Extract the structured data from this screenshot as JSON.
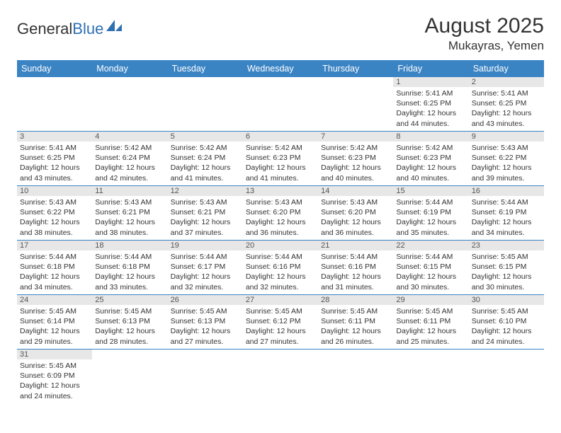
{
  "logo": {
    "part1": "General",
    "part2": "Blue"
  },
  "title": "August 2025",
  "location": "Mukayras, Yemen",
  "colors": {
    "header_bg": "#3b84c4",
    "header_text": "#ffffff",
    "daynum_bg": "#e7e7e7",
    "cell_border": "#3b84c4",
    "text": "#333333",
    "logo_blue": "#2f6fb3"
  },
  "weekdays": [
    "Sunday",
    "Monday",
    "Tuesday",
    "Wednesday",
    "Thursday",
    "Friday",
    "Saturday"
  ],
  "weeks": [
    [
      null,
      null,
      null,
      null,
      null,
      {
        "n": "1",
        "sr": "Sunrise: 5:41 AM",
        "ss": "Sunset: 6:25 PM",
        "dl1": "Daylight: 12 hours",
        "dl2": "and 44 minutes."
      },
      {
        "n": "2",
        "sr": "Sunrise: 5:41 AM",
        "ss": "Sunset: 6:25 PM",
        "dl1": "Daylight: 12 hours",
        "dl2": "and 43 minutes."
      }
    ],
    [
      {
        "n": "3",
        "sr": "Sunrise: 5:41 AM",
        "ss": "Sunset: 6:25 PM",
        "dl1": "Daylight: 12 hours",
        "dl2": "and 43 minutes."
      },
      {
        "n": "4",
        "sr": "Sunrise: 5:42 AM",
        "ss": "Sunset: 6:24 PM",
        "dl1": "Daylight: 12 hours",
        "dl2": "and 42 minutes."
      },
      {
        "n": "5",
        "sr": "Sunrise: 5:42 AM",
        "ss": "Sunset: 6:24 PM",
        "dl1": "Daylight: 12 hours",
        "dl2": "and 41 minutes."
      },
      {
        "n": "6",
        "sr": "Sunrise: 5:42 AM",
        "ss": "Sunset: 6:23 PM",
        "dl1": "Daylight: 12 hours",
        "dl2": "and 41 minutes."
      },
      {
        "n": "7",
        "sr": "Sunrise: 5:42 AM",
        "ss": "Sunset: 6:23 PM",
        "dl1": "Daylight: 12 hours",
        "dl2": "and 40 minutes."
      },
      {
        "n": "8",
        "sr": "Sunrise: 5:42 AM",
        "ss": "Sunset: 6:23 PM",
        "dl1": "Daylight: 12 hours",
        "dl2": "and 40 minutes."
      },
      {
        "n": "9",
        "sr": "Sunrise: 5:43 AM",
        "ss": "Sunset: 6:22 PM",
        "dl1": "Daylight: 12 hours",
        "dl2": "and 39 minutes."
      }
    ],
    [
      {
        "n": "10",
        "sr": "Sunrise: 5:43 AM",
        "ss": "Sunset: 6:22 PM",
        "dl1": "Daylight: 12 hours",
        "dl2": "and 38 minutes."
      },
      {
        "n": "11",
        "sr": "Sunrise: 5:43 AM",
        "ss": "Sunset: 6:21 PM",
        "dl1": "Daylight: 12 hours",
        "dl2": "and 38 minutes."
      },
      {
        "n": "12",
        "sr": "Sunrise: 5:43 AM",
        "ss": "Sunset: 6:21 PM",
        "dl1": "Daylight: 12 hours",
        "dl2": "and 37 minutes."
      },
      {
        "n": "13",
        "sr": "Sunrise: 5:43 AM",
        "ss": "Sunset: 6:20 PM",
        "dl1": "Daylight: 12 hours",
        "dl2": "and 36 minutes."
      },
      {
        "n": "14",
        "sr": "Sunrise: 5:43 AM",
        "ss": "Sunset: 6:20 PM",
        "dl1": "Daylight: 12 hours",
        "dl2": "and 36 minutes."
      },
      {
        "n": "15",
        "sr": "Sunrise: 5:44 AM",
        "ss": "Sunset: 6:19 PM",
        "dl1": "Daylight: 12 hours",
        "dl2": "and 35 minutes."
      },
      {
        "n": "16",
        "sr": "Sunrise: 5:44 AM",
        "ss": "Sunset: 6:19 PM",
        "dl1": "Daylight: 12 hours",
        "dl2": "and 34 minutes."
      }
    ],
    [
      {
        "n": "17",
        "sr": "Sunrise: 5:44 AM",
        "ss": "Sunset: 6:18 PM",
        "dl1": "Daylight: 12 hours",
        "dl2": "and 34 minutes."
      },
      {
        "n": "18",
        "sr": "Sunrise: 5:44 AM",
        "ss": "Sunset: 6:18 PM",
        "dl1": "Daylight: 12 hours",
        "dl2": "and 33 minutes."
      },
      {
        "n": "19",
        "sr": "Sunrise: 5:44 AM",
        "ss": "Sunset: 6:17 PM",
        "dl1": "Daylight: 12 hours",
        "dl2": "and 32 minutes."
      },
      {
        "n": "20",
        "sr": "Sunrise: 5:44 AM",
        "ss": "Sunset: 6:16 PM",
        "dl1": "Daylight: 12 hours",
        "dl2": "and 32 minutes."
      },
      {
        "n": "21",
        "sr": "Sunrise: 5:44 AM",
        "ss": "Sunset: 6:16 PM",
        "dl1": "Daylight: 12 hours",
        "dl2": "and 31 minutes."
      },
      {
        "n": "22",
        "sr": "Sunrise: 5:44 AM",
        "ss": "Sunset: 6:15 PM",
        "dl1": "Daylight: 12 hours",
        "dl2": "and 30 minutes."
      },
      {
        "n": "23",
        "sr": "Sunrise: 5:45 AM",
        "ss": "Sunset: 6:15 PM",
        "dl1": "Daylight: 12 hours",
        "dl2": "and 30 minutes."
      }
    ],
    [
      {
        "n": "24",
        "sr": "Sunrise: 5:45 AM",
        "ss": "Sunset: 6:14 PM",
        "dl1": "Daylight: 12 hours",
        "dl2": "and 29 minutes."
      },
      {
        "n": "25",
        "sr": "Sunrise: 5:45 AM",
        "ss": "Sunset: 6:13 PM",
        "dl1": "Daylight: 12 hours",
        "dl2": "and 28 minutes."
      },
      {
        "n": "26",
        "sr": "Sunrise: 5:45 AM",
        "ss": "Sunset: 6:13 PM",
        "dl1": "Daylight: 12 hours",
        "dl2": "and 27 minutes."
      },
      {
        "n": "27",
        "sr": "Sunrise: 5:45 AM",
        "ss": "Sunset: 6:12 PM",
        "dl1": "Daylight: 12 hours",
        "dl2": "and 27 minutes."
      },
      {
        "n": "28",
        "sr": "Sunrise: 5:45 AM",
        "ss": "Sunset: 6:11 PM",
        "dl1": "Daylight: 12 hours",
        "dl2": "and 26 minutes."
      },
      {
        "n": "29",
        "sr": "Sunrise: 5:45 AM",
        "ss": "Sunset: 6:11 PM",
        "dl1": "Daylight: 12 hours",
        "dl2": "and 25 minutes."
      },
      {
        "n": "30",
        "sr": "Sunrise: 5:45 AM",
        "ss": "Sunset: 6:10 PM",
        "dl1": "Daylight: 12 hours",
        "dl2": "and 24 minutes."
      }
    ],
    [
      {
        "n": "31",
        "sr": "Sunrise: 5:45 AM",
        "ss": "Sunset: 6:09 PM",
        "dl1": "Daylight: 12 hours",
        "dl2": "and 24 minutes."
      },
      null,
      null,
      null,
      null,
      null,
      null
    ]
  ]
}
